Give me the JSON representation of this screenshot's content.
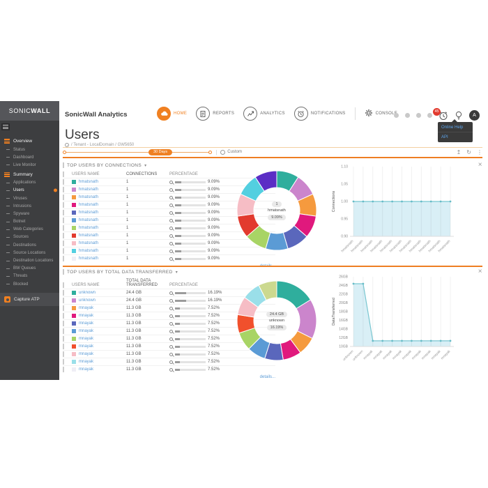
{
  "sidebar": {
    "logo_prefix": "SONIC",
    "logo_suffix": "WALL",
    "sections": [
      {
        "label": "Overview",
        "items": [
          {
            "label": "Status"
          },
          {
            "label": "Dashboard"
          },
          {
            "label": "Live Monitor"
          }
        ]
      },
      {
        "label": "Summary",
        "items": [
          {
            "label": "Applications"
          },
          {
            "label": "Users",
            "active": true
          },
          {
            "label": "Viruses"
          },
          {
            "label": "Intrusions"
          },
          {
            "label": "Spyware"
          },
          {
            "label": "Botnet"
          },
          {
            "label": "Web Categories"
          },
          {
            "label": "Sources"
          },
          {
            "label": "Destinations"
          },
          {
            "label": "Source Locations"
          },
          {
            "label": "Destination Locations"
          },
          {
            "label": "BW Queues"
          },
          {
            "label": "Threats"
          },
          {
            "label": "Blocked"
          }
        ]
      }
    ],
    "capture_atp": "Capture ATP"
  },
  "topnav": {
    "brand": "SonicWall Analytics",
    "items": [
      {
        "label": "HOME",
        "icon": "home-icon",
        "active": true
      },
      {
        "label": "REPORTS",
        "icon": "reports-icon"
      },
      {
        "label": "ANALYTICS",
        "icon": "analytics-icon"
      },
      {
        "label": "NOTIFICATIONS",
        "icon": "notifications-icon"
      },
      {
        "label": "CONSOLE",
        "icon": "console-icon"
      }
    ],
    "notification_badge": "45",
    "avatar_letter": "A",
    "help_menu": {
      "items": [
        "Online Help",
        "API"
      ]
    }
  },
  "page": {
    "title": "Users",
    "breadcrumb": "/ Tenant - LocalDomain / GW5650"
  },
  "toolbar": {
    "range_label": "30 Days",
    "custom_label": "Custom"
  },
  "colors": {
    "accent": "#f08021",
    "link": "#5b9bd5",
    "line": "#79c6d0",
    "area": "#d9eff6",
    "marker": "#66bcc8",
    "badge": "#e23a2e"
  },
  "sections": [
    {
      "title": "TOP USERS BY CONNECTIONS",
      "columns": {
        "name": "USERS NAME",
        "value": "CONNECTIONS",
        "pct": "PERCENTAGE"
      },
      "rows": [
        {
          "name": "hmatsnath",
          "value": "1",
          "pct": "9.09%",
          "pct_num": 9.09,
          "color": "#2fae9d"
        },
        {
          "name": "hmatsnath",
          "value": "1",
          "pct": "9.09%",
          "pct_num": 9.09,
          "color": "#cb85cc"
        },
        {
          "name": "hmatsnath",
          "value": "1",
          "pct": "9.09%",
          "pct_num": 9.09,
          "color": "#f59a3e"
        },
        {
          "name": "hmatsnath",
          "value": "1",
          "pct": "9.09%",
          "pct_num": 9.09,
          "color": "#e0197d"
        },
        {
          "name": "hmatsnath",
          "value": "1",
          "pct": "9.09%",
          "pct_num": 9.09,
          "color": "#5a67bc"
        },
        {
          "name": "hmatsnath",
          "value": "1",
          "pct": "9.09%",
          "pct_num": 9.09,
          "color": "#5b9bd5"
        },
        {
          "name": "hmatsnath",
          "value": "1",
          "pct": "9.09%",
          "pct_num": 9.09,
          "color": "#a8d465"
        },
        {
          "name": "hmatsnath",
          "value": "1",
          "pct": "9.09%",
          "pct_num": 9.09,
          "color": "#e23a2e"
        },
        {
          "name": "hmatsnath",
          "value": "1",
          "pct": "9.09%",
          "pct_num": 9.09,
          "color": "#f6bdc5"
        },
        {
          "name": "hmatsnath",
          "value": "1",
          "pct": "9.09%",
          "pct_num": 9.09,
          "color": "#53cfe0"
        },
        {
          "name": "hmatsnath",
          "value": "1",
          "pct": "9.09%",
          "pct_num": 9.09,
          "color": "#efeef5"
        }
      ],
      "details_label": "details...",
      "donut": {
        "center_value": "1",
        "center_name": "hmatsnath",
        "center_pct": "9.09%",
        "values": [
          9.09,
          9.09,
          9.09,
          9.09,
          9.09,
          9.09,
          9.09,
          9.09,
          9.09,
          9.09,
          9.09
        ],
        "colors": [
          "#2fae9d",
          "#cb85cc",
          "#f59a3e",
          "#e0197d",
          "#5a67bc",
          "#5b9bd5",
          "#a8d465",
          "#e23a2e",
          "#f6bdc5",
          "#53cfe0",
          "#5b2ec5"
        ]
      },
      "line": {
        "y_title": "Connections",
        "ticks": [
          {
            "label": "1.10",
            "value": 1.1
          },
          {
            "label": "1.05",
            "value": 1.05
          },
          {
            "label": "1.00",
            "value": 1.0
          },
          {
            "label": "0.95",
            "value": 0.95
          },
          {
            "label": "0.90",
            "value": 0.9
          }
        ],
        "y_min": 0.9,
        "y_max": 1.1,
        "values": [
          1,
          1,
          1,
          1,
          1,
          1,
          1,
          1,
          1,
          1,
          1
        ],
        "x_labels": [
          "hmatsnath",
          "hmatsnath",
          "hmatsnath",
          "hmatsnath",
          "hmatsnath",
          "hmatsnath",
          "hmatsnath",
          "hmatsnath",
          "hmatsnath",
          "hmatsnath",
          "hmatsnath"
        ]
      }
    },
    {
      "title": "TOP USERS BY TOTAL DATA TRANSFERRED",
      "columns": {
        "name": "USERS NAME",
        "value": "TOTAL DATA TRANSFERRED",
        "pct": "PERCENTAGE"
      },
      "rows": [
        {
          "name": "unknown",
          "value": "24.4 GB",
          "pct": "16.19%",
          "pct_num": 16.19,
          "color": "#2fae9d"
        },
        {
          "name": "unknown",
          "value": "24.4 GB",
          "pct": "16.19%",
          "pct_num": 16.19,
          "color": "#cb85cc"
        },
        {
          "name": "mnayak",
          "value": "11.3 GB",
          "pct": "7.52%",
          "pct_num": 7.52,
          "color": "#f59a3e"
        },
        {
          "name": "mnayak",
          "value": "11.3 GB",
          "pct": "7.52%",
          "pct_num": 7.52,
          "color": "#e0197d"
        },
        {
          "name": "mnayak",
          "value": "11.3 GB",
          "pct": "7.52%",
          "pct_num": 7.52,
          "color": "#5a67bc"
        },
        {
          "name": "mnayak",
          "value": "11.3 GB",
          "pct": "7.52%",
          "pct_num": 7.52,
          "color": "#5b9bd5"
        },
        {
          "name": "mnayak",
          "value": "11.3 GB",
          "pct": "7.52%",
          "pct_num": 7.52,
          "color": "#a8d465"
        },
        {
          "name": "mnayak",
          "value": "11.3 GB",
          "pct": "7.52%",
          "pct_num": 7.52,
          "color": "#f1502c"
        },
        {
          "name": "mnayak",
          "value": "11.3 GB",
          "pct": "7.52%",
          "pct_num": 7.52,
          "color": "#f6bdc5"
        },
        {
          "name": "mnayak",
          "value": "11.3 GB",
          "pct": "7.52%",
          "pct_num": 7.52,
          "color": "#9adfe9"
        },
        {
          "name": "mnayak",
          "value": "11.3 GB",
          "pct": "7.52%",
          "pct_num": 7.52,
          "color": "#efeef5"
        }
      ],
      "details_label": "details...",
      "donut": {
        "center_value": "24.4 GB",
        "center_name": "unknown",
        "center_pct": "16.19%",
        "values": [
          16.19,
          16.19,
          7.52,
          7.52,
          7.52,
          7.52,
          7.52,
          7.52,
          7.52,
          7.52,
          7.52
        ],
        "colors": [
          "#2fae9d",
          "#cb85cc",
          "#f59a3e",
          "#e0197d",
          "#5a67bc",
          "#5b9bd5",
          "#a8d465",
          "#f1502c",
          "#f6bdc5",
          "#9adfe9",
          "#ccd98f"
        ]
      },
      "line": {
        "y_title": "DataTransferred",
        "ticks": [
          {
            "label": "26GB",
            "value": 26
          },
          {
            "label": "24GB",
            "value": 24
          },
          {
            "label": "22GB",
            "value": 22
          },
          {
            "label": "20GB",
            "value": 20
          },
          {
            "label": "18GB",
            "value": 18
          },
          {
            "label": "16GB",
            "value": 16
          },
          {
            "label": "14GB",
            "value": 14
          },
          {
            "label": "12GB",
            "value": 12
          },
          {
            "label": "10GB",
            "value": 10
          }
        ],
        "y_min": 10,
        "y_max": 26,
        "values": [
          24.4,
          24.4,
          11.3,
          11.3,
          11.3,
          11.3,
          11.3,
          11.3,
          11.3,
          11.3,
          11.3
        ],
        "x_labels": [
          "unknown",
          "unknown",
          "mnayak",
          "mnayak",
          "mnayak",
          "mnayak",
          "mnayak",
          "mnayak",
          "mnayak",
          "mnayak",
          "mnayak"
        ]
      }
    }
  ]
}
